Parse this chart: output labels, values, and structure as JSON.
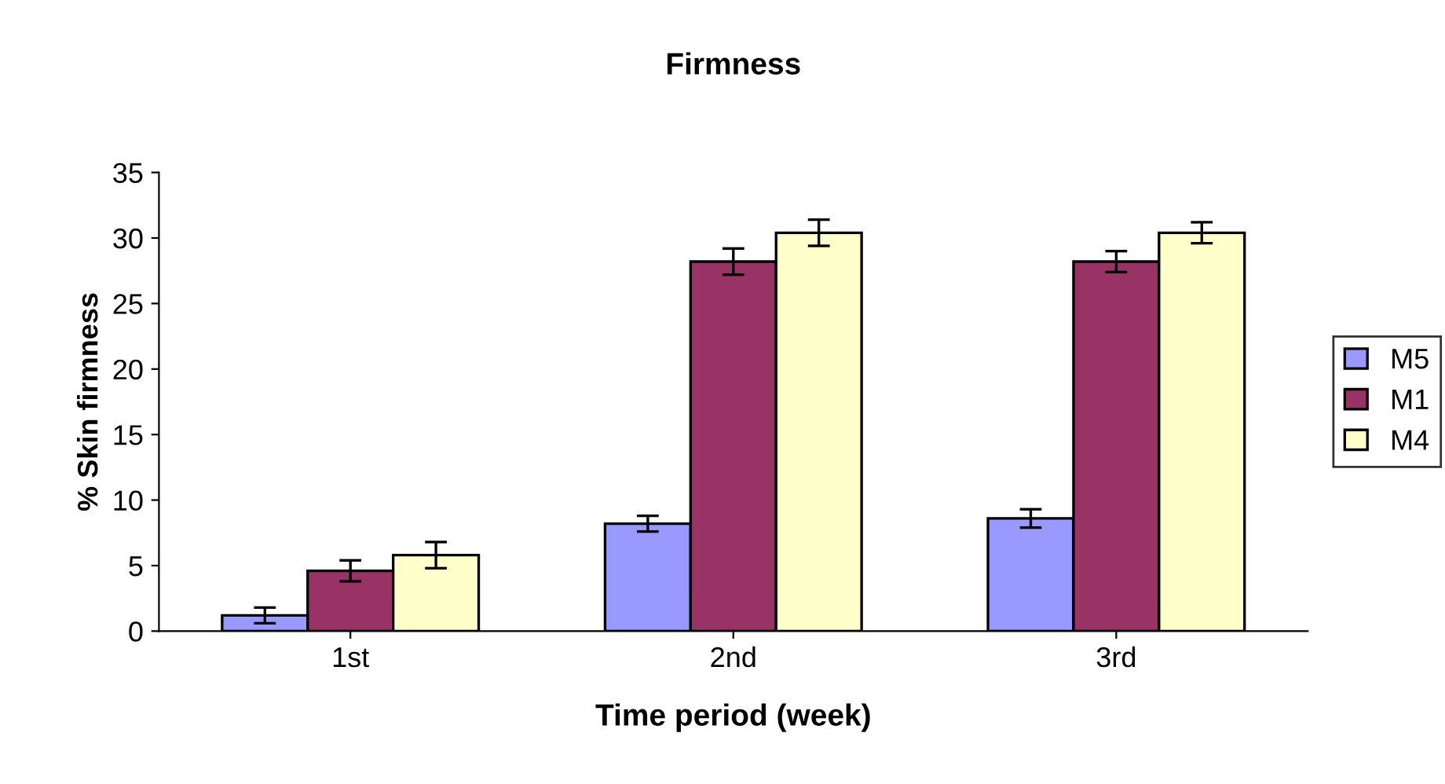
{
  "chart_data": {
    "type": "bar",
    "title": "Firmness",
    "xlabel": "Time period (week)",
    "ylabel": "% Skin firmness",
    "categories": [
      "1st",
      "2nd",
      "3rd"
    ],
    "series": [
      {
        "name": "M5",
        "color": "#9999ff",
        "values": [
          1.2,
          8.2,
          8.6
        ],
        "errors": [
          0.6,
          0.6,
          0.7
        ]
      },
      {
        "name": "M1",
        "color": "#993366",
        "values": [
          4.6,
          28.2,
          28.2
        ],
        "errors": [
          0.8,
          1.0,
          0.8
        ]
      },
      {
        "name": "M4",
        "color": "#ffffcc",
        "values": [
          5.8,
          30.4,
          30.4
        ],
        "errors": [
          1.0,
          1.0,
          0.8
        ]
      }
    ],
    "ylim": [
      0,
      35
    ],
    "yticks": [
      0,
      5,
      10,
      15,
      20,
      25,
      30,
      35
    ],
    "grid": false,
    "legend": "right"
  }
}
